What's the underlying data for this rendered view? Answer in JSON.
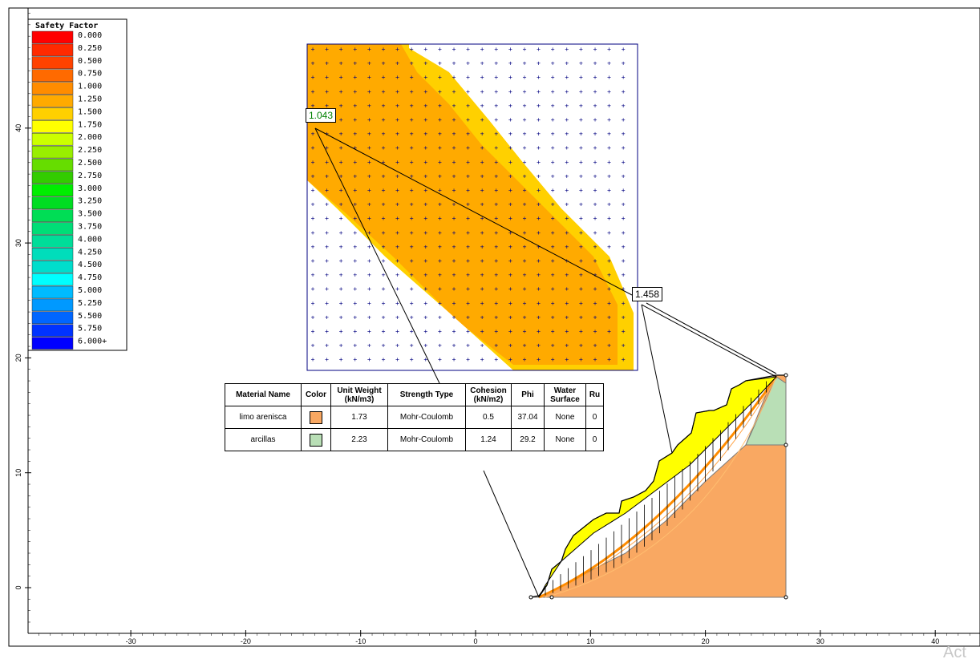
{
  "legend": {
    "title": "Safety Factor",
    "entries": [
      {
        "label": "0.000",
        "color": "#ff0000"
      },
      {
        "label": "0.250",
        "color": "#ff2a00"
      },
      {
        "label": "0.500",
        "color": "#ff4200"
      },
      {
        "label": "0.750",
        "color": "#ff6a00"
      },
      {
        "label": "1.000",
        "color": "#ff8c00"
      },
      {
        "label": "1.250",
        "color": "#ffaa00"
      },
      {
        "label": "1.500",
        "color": "#ffd000"
      },
      {
        "label": "1.750",
        "color": "#ffff00"
      },
      {
        "label": "2.000",
        "color": "#ccff00"
      },
      {
        "label": "2.250",
        "color": "#99ee00"
      },
      {
        "label": "2.500",
        "color": "#66dd00"
      },
      {
        "label": "2.750",
        "color": "#33cc00"
      },
      {
        "label": "3.000",
        "color": "#00ee00"
      },
      {
        "label": "3.250",
        "color": "#00dd22"
      },
      {
        "label": "3.500",
        "color": "#00dd55"
      },
      {
        "label": "3.750",
        "color": "#00dd77"
      },
      {
        "label": "4.000",
        "color": "#00dd99"
      },
      {
        "label": "4.250",
        "color": "#00ddbb"
      },
      {
        "label": "4.500",
        "color": "#00ddcc"
      },
      {
        "label": "4.750",
        "color": "#00ffff"
      },
      {
        "label": "5.000",
        "color": "#00bbff"
      },
      {
        "label": "5.250",
        "color": "#0099ff"
      },
      {
        "label": "5.500",
        "color": "#0066ff"
      },
      {
        "label": "5.750",
        "color": "#0033ff"
      },
      {
        "label": "6.000+",
        "color": "#0000ff"
      }
    ]
  },
  "axes": {
    "x_ticks": [
      "-30",
      "-20",
      "-10",
      "0",
      "10",
      "20",
      "30",
      "40"
    ],
    "y_ticks": [
      "40",
      "30",
      "20",
      "10",
      "0"
    ]
  },
  "labels": {
    "fs_min": "1.043",
    "fs_global": "1.458"
  },
  "table": {
    "headers": [
      "Material Name",
      "Color",
      "Unit Weight (kN/m3)",
      "Strength Type",
      "Cohesion (kN/m2)",
      "Phi",
      "Water Surface",
      "Ru"
    ],
    "rows": [
      {
        "name": "limo arenisca",
        "color": "#f9a862",
        "unit_weight": "1.73",
        "strength": "Mohr-Coulomb",
        "cohesion": "0.5",
        "phi": "37.04",
        "water": "None",
        "ru": "0"
      },
      {
        "name": "arcillas",
        "color": "#b9dfb6",
        "unit_weight": "2.23",
        "strength": "Mohr-Coulomb",
        "cohesion": "1.24",
        "phi": "29.2",
        "water": "None",
        "ru": "0"
      }
    ]
  },
  "watermark": "Act"
}
